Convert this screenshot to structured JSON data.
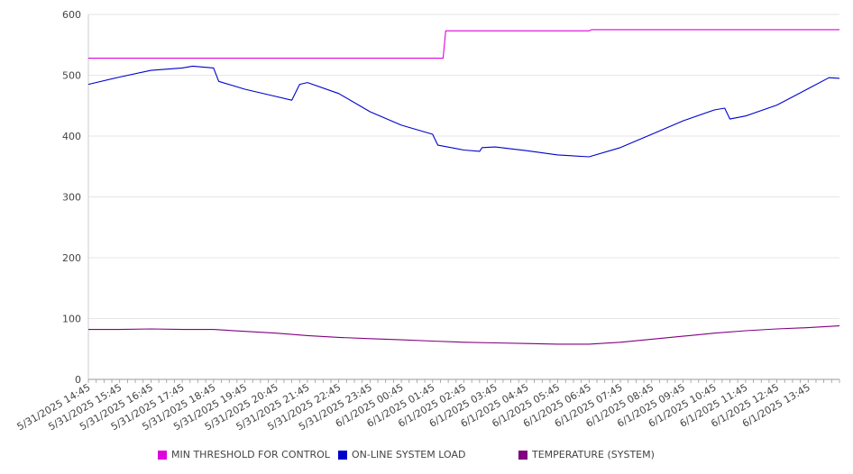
{
  "chart_data": {
    "type": "line",
    "title": "",
    "xlabel": "",
    "ylabel": "",
    "ylim": [
      0,
      600
    ],
    "yticks": [
      0,
      100,
      200,
      300,
      400,
      500,
      600
    ],
    "grid": "horizontal",
    "legend_position": "bottom",
    "x_tick_labels": [
      "5/31/2025 14:45",
      "5/31/2025 15:45",
      "5/31/2025 16:45",
      "5/31/2025 17:45",
      "5/31/2025 18:45",
      "5/31/2025 19:45",
      "5/31/2025 20:45",
      "5/31/2025 21:45",
      "5/31/2025 22:45",
      "5/31/2025 23:45",
      "6/1/2025 00:45",
      "6/1/2025 01:45",
      "6/1/2025 02:45",
      "6/1/2025 03:45",
      "6/1/2025 04:45",
      "6/1/2025 05:45",
      "6/1/2025 06:45",
      "6/1/2025 07:45",
      "6/1/2025 08:45",
      "6/1/2025 09:45",
      "6/1/2025 10:45",
      "6/1/2025 11:45",
      "6/1/2025 12:45",
      "6/1/2025 13:45"
    ],
    "x_range": [
      "5/31/2025 14:45",
      "6/1/2025 14:45"
    ],
    "series": [
      {
        "name": "MIN THRESHOLD FOR CONTROL",
        "color": "#e000e0",
        "points": [
          [
            "5/31/2025 14:45",
            528
          ],
          [
            "6/1/2025 02:05",
            528
          ],
          [
            "6/1/2025 02:10",
            573
          ],
          [
            "6/1/2025 06:45",
            573
          ],
          [
            "6/1/2025 06:50",
            575
          ],
          [
            "6/1/2025 14:45",
            575
          ]
        ]
      },
      {
        "name": "ON-LINE SYSTEM LOAD",
        "color": "#0000cc",
        "points": [
          [
            "5/31/2025 14:45",
            485
          ],
          [
            "5/31/2025 15:45",
            497
          ],
          [
            "5/31/2025 16:45",
            508
          ],
          [
            "5/31/2025 17:45",
            512
          ],
          [
            "5/31/2025 18:05",
            515
          ],
          [
            "5/31/2025 18:45",
            512
          ],
          [
            "5/31/2025 18:55",
            490
          ],
          [
            "5/31/2025 19:45",
            477
          ],
          [
            "5/31/2025 20:45",
            465
          ],
          [
            "5/31/2025 21:15",
            459
          ],
          [
            "5/31/2025 21:30",
            485
          ],
          [
            "5/31/2025 21:45",
            488
          ],
          [
            "5/31/2025 22:45",
            470
          ],
          [
            "5/31/2025 23:45",
            440
          ],
          [
            "6/1/2025 00:45",
            418
          ],
          [
            "6/1/2025 01:45",
            403
          ],
          [
            "6/1/2025 01:55",
            385
          ],
          [
            "6/1/2025 02:45",
            377
          ],
          [
            "6/1/2025 03:15",
            375
          ],
          [
            "6/1/2025 03:20",
            381
          ],
          [
            "6/1/2025 03:45",
            382
          ],
          [
            "6/1/2025 04:45",
            376
          ],
          [
            "6/1/2025 05:45",
            369
          ],
          [
            "6/1/2025 06:45",
            366
          ],
          [
            "6/1/2025 07:45",
            381
          ],
          [
            "6/1/2025 08:45",
            403
          ],
          [
            "6/1/2025 09:45",
            425
          ],
          [
            "6/1/2025 10:45",
            443
          ],
          [
            "6/1/2025 11:05",
            446
          ],
          [
            "6/1/2025 11:15",
            428
          ],
          [
            "6/1/2025 11:45",
            433
          ],
          [
            "6/1/2025 12:45",
            451
          ],
          [
            "6/1/2025 13:45",
            478
          ],
          [
            "6/1/2025 14:25",
            496
          ],
          [
            "6/1/2025 14:45",
            495
          ]
        ]
      },
      {
        "name": "TEMPERATURE (SYSTEM)",
        "color": "#800080",
        "points": [
          [
            "5/31/2025 14:45",
            82
          ],
          [
            "5/31/2025 15:45",
            82
          ],
          [
            "5/31/2025 16:45",
            83
          ],
          [
            "5/31/2025 17:45",
            82
          ],
          [
            "5/31/2025 18:45",
            82
          ],
          [
            "5/31/2025 19:45",
            79
          ],
          [
            "5/31/2025 20:45",
            76
          ],
          [
            "5/31/2025 21:45",
            72
          ],
          [
            "5/31/2025 22:45",
            69
          ],
          [
            "5/31/2025 23:45",
            67
          ],
          [
            "6/1/2025 00:45",
            65
          ],
          [
            "6/1/2025 01:45",
            63
          ],
          [
            "6/1/2025 02:45",
            61
          ],
          [
            "6/1/2025 03:45",
            60
          ],
          [
            "6/1/2025 04:45",
            59
          ],
          [
            "6/1/2025 05:45",
            58
          ],
          [
            "6/1/2025 06:45",
            58
          ],
          [
            "6/1/2025 07:45",
            61
          ],
          [
            "6/1/2025 08:45",
            66
          ],
          [
            "6/1/2025 09:45",
            71
          ],
          [
            "6/1/2025 10:45",
            76
          ],
          [
            "6/1/2025 11:45",
            80
          ],
          [
            "6/1/2025 12:45",
            83
          ],
          [
            "6/1/2025 13:45",
            85
          ],
          [
            "6/1/2025 14:45",
            88
          ]
        ]
      }
    ]
  }
}
